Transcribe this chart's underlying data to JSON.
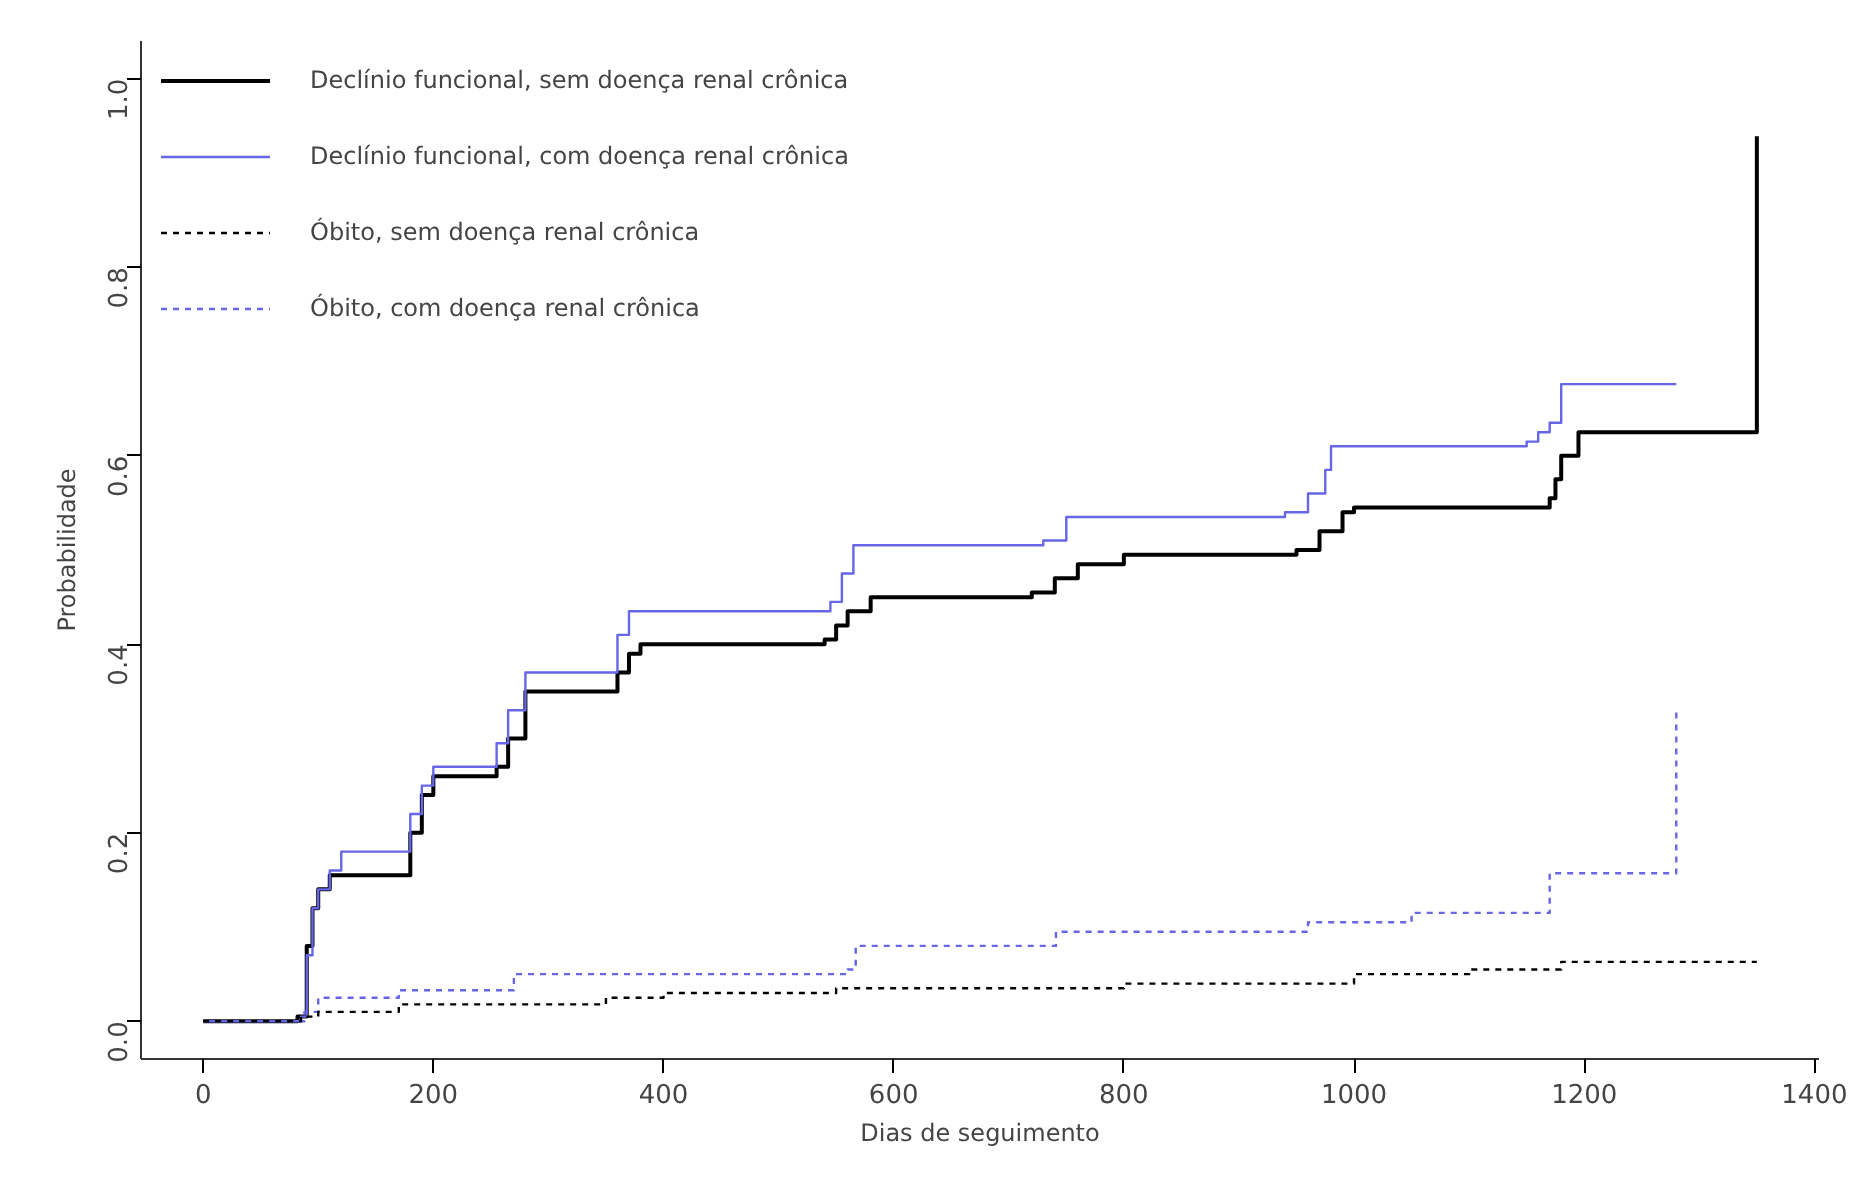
{
  "chart_data": {
    "type": "step",
    "xlabel": "Dias de seguimento",
    "ylabel": "Probabilidade",
    "xlim": [
      -54,
      1404
    ],
    "ylim": [
      -0.04,
      1.04
    ],
    "xticks": [
      0,
      200,
      400,
      600,
      800,
      1000,
      1200,
      1400
    ],
    "yticks": [
      {
        "value": 0,
        "label": "0.0"
      },
      {
        "value": 0.2,
        "label": "0.2"
      },
      {
        "value": 0.4,
        "label": "0.4"
      },
      {
        "value": 0.6,
        "label": "0.6"
      },
      {
        "value": 0.8,
        "label": "0.8"
      },
      {
        "value": 1,
        "label": "1.0"
      }
    ],
    "grid": false,
    "legend": "top left",
    "marker": "none",
    "series": [
      {
        "name": "Declínio funcional, sem doença renal crônica",
        "color": "#000000",
        "line_style": "solid",
        "x": [
          0,
          82,
          90,
          95,
          100,
          110,
          170,
          180,
          190,
          200,
          255,
          265,
          280,
          350,
          360,
          370,
          380,
          540,
          550,
          560,
          580,
          720,
          740,
          760,
          800,
          950,
          970,
          990,
          1000,
          1170,
          1175,
          1180,
          1195,
          1350,
          1350
        ],
        "values": [
          0,
          0.005,
          0.08,
          0.12,
          0.14,
          0.155,
          0.155,
          0.2,
          0.24,
          0.26,
          0.27,
          0.3,
          0.35,
          0.35,
          0.37,
          0.39,
          0.4,
          0.405,
          0.42,
          0.435,
          0.45,
          0.455,
          0.47,
          0.485,
          0.495,
          0.5,
          0.52,
          0.54,
          0.545,
          0.555,
          0.575,
          0.6,
          0.625,
          0.625,
          0.939
        ]
      },
      {
        "name": "Declínio funcional, com doença renal crônica",
        "color": "#6666e6",
        "line_style": "solid",
        "x": [
          0,
          85,
          90,
          95,
          100,
          110,
          120,
          170,
          180,
          190,
          200,
          255,
          265,
          280,
          350,
          360,
          370,
          545,
          555,
          565,
          730,
          750,
          940,
          960,
          975,
          980,
          1150,
          1160,
          1170,
          1180,
          1280
        ],
        "values": [
          0,
          0.005,
          0.07,
          0.12,
          0.14,
          0.16,
          0.18,
          0.18,
          0.22,
          0.25,
          0.27,
          0.295,
          0.33,
          0.37,
          0.37,
          0.41,
          0.435,
          0.445,
          0.475,
          0.505,
          0.51,
          0.535,
          0.54,
          0.56,
          0.585,
          0.61,
          0.615,
          0.625,
          0.635,
          0.676,
          0.676
        ]
      },
      {
        "name": "Óbito, sem doença renal crônica",
        "color": "#000000",
        "line_style": "dashed",
        "x": [
          0,
          85,
          100,
          170,
          350,
          400,
          550,
          800,
          1000,
          1100,
          1180,
          1350
        ],
        "values": [
          0,
          0.005,
          0.01,
          0.018,
          0.025,
          0.03,
          0.035,
          0.04,
          0.05,
          0.055,
          0.063,
          0.063
        ]
      },
      {
        "name": "Óbito, com doença renal crônica",
        "color": "#6666e6",
        "line_style": "dashed",
        "x": [
          0,
          88,
          100,
          170,
          270,
          560,
          567,
          741,
          960,
          1050,
          1170,
          1280,
          1280
        ],
        "values": [
          0,
          0.01,
          0.025,
          0.033,
          0.05,
          0.055,
          0.08,
          0.095,
          0.105,
          0.115,
          0.157,
          0.157,
          0.33
        ]
      }
    ]
  }
}
